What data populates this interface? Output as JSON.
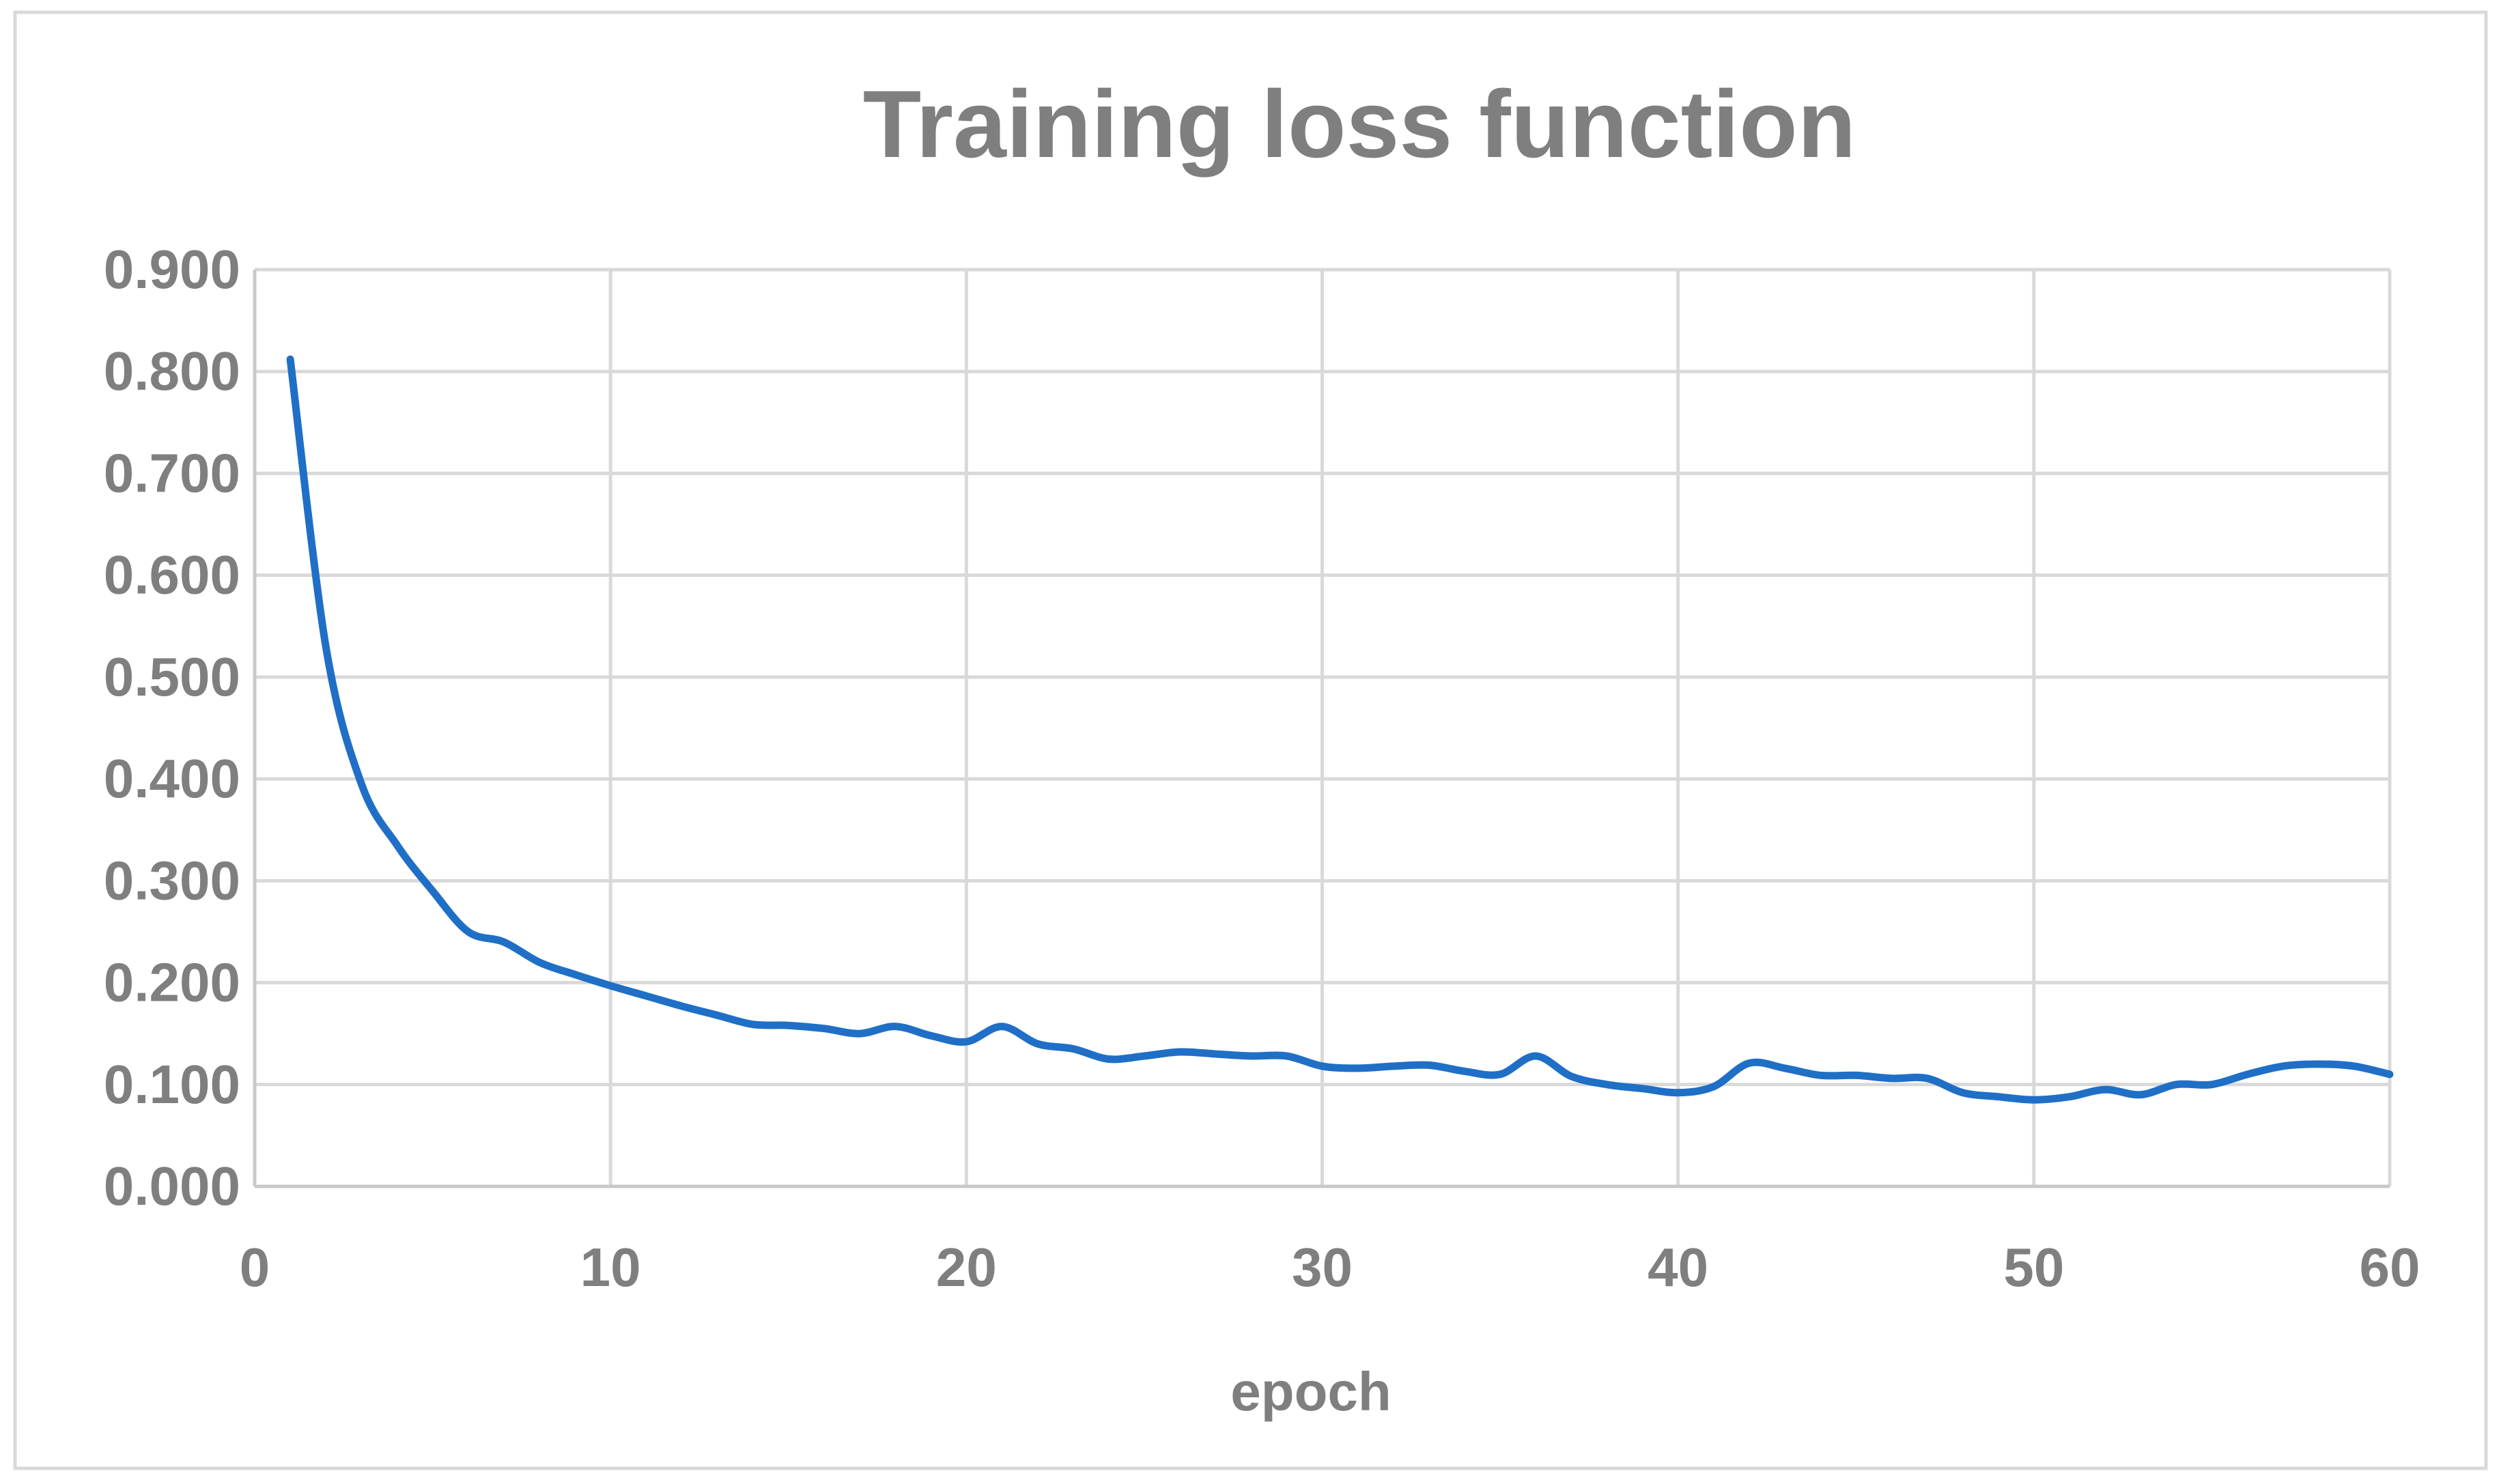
{
  "chart_data": {
    "type": "line",
    "title": "Training loss function",
    "xlabel": "epoch",
    "ylabel": "",
    "xlim": [
      0,
      60
    ],
    "ylim": [
      0,
      0.9
    ],
    "x_ticks": [
      0,
      10,
      20,
      30,
      40,
      50,
      60
    ],
    "y_ticks": [
      0.0,
      0.1,
      0.2,
      0.3,
      0.4,
      0.5,
      0.6,
      0.7,
      0.8,
      0.9
    ],
    "y_tick_labels": [
      "0.000",
      "0.100",
      "0.200",
      "0.300",
      "0.400",
      "0.500",
      "0.600",
      "0.700",
      "0.800",
      "0.900"
    ],
    "x_tick_labels": [
      "0",
      "10",
      "20",
      "30",
      "40",
      "50",
      "60"
    ],
    "grid": true,
    "legend": "none",
    "colors": {
      "line": "#1f6fc6",
      "grid": "#d9d9d9",
      "text": "#7f7f7f",
      "axis": "#c8c8c8"
    },
    "series": [
      {
        "x": [
          1,
          2,
          3,
          4,
          5,
          6,
          7,
          8,
          9,
          10,
          11,
          12,
          13,
          14,
          15,
          16,
          17,
          18,
          19,
          20,
          21,
          22,
          23,
          24,
          25,
          26,
          27,
          28,
          29,
          30,
          31,
          32,
          33,
          34,
          35,
          36,
          37,
          38,
          39,
          40,
          41,
          42,
          43,
          44,
          45,
          46,
          47,
          48,
          49,
          50,
          51,
          52,
          53,
          54,
          55,
          56,
          57,
          58,
          59,
          60
        ],
        "y": [
          0.812,
          0.53,
          0.395,
          0.335,
          0.29,
          0.25,
          0.24,
          0.22,
          0.208,
          0.197,
          0.187,
          0.177,
          0.168,
          0.159,
          0.158,
          0.155,
          0.15,
          0.157,
          0.148,
          0.142,
          0.157,
          0.14,
          0.135,
          0.125,
          0.128,
          0.132,
          0.13,
          0.128,
          0.128,
          0.118,
          0.116,
          0.118,
          0.119,
          0.113,
          0.11,
          0.128,
          0.108,
          0.1,
          0.096,
          0.092,
          0.098,
          0.121,
          0.116,
          0.109,
          0.109,
          0.106,
          0.106,
          0.092,
          0.088,
          0.085,
          0.088,
          0.095,
          0.09,
          0.1,
          0.1,
          0.11,
          0.118,
          0.12,
          0.118,
          0.11
        ]
      }
    ]
  }
}
